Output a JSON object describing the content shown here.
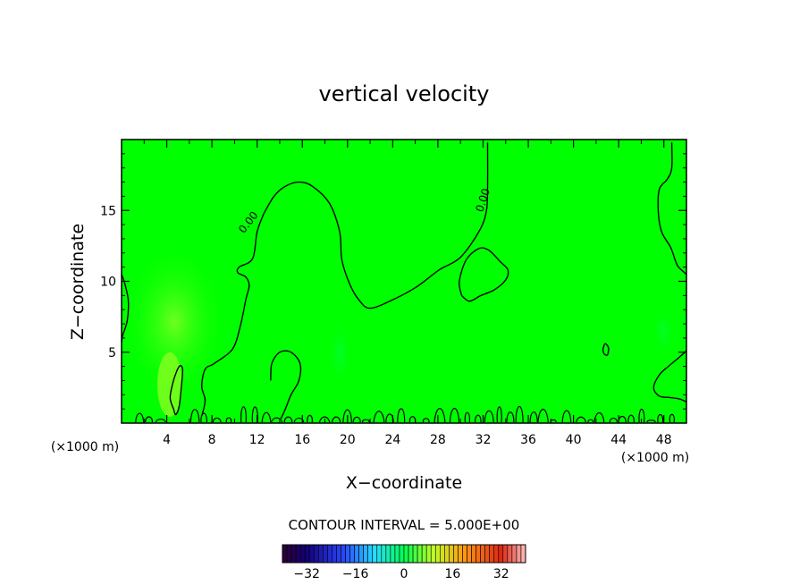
{
  "chart_data": {
    "type": "heatmap",
    "title": "vertical velocity",
    "xlabel": "X−coordinate",
    "ylabel": "Z−coordinate",
    "x_unit": "(×1000 m)",
    "y_unit": "(×1000 m)",
    "xlim": [
      0,
      50
    ],
    "ylim": [
      0,
      20
    ],
    "x_ticks": [
      4,
      8,
      12,
      16,
      20,
      24,
      28,
      32,
      36,
      40,
      44,
      48
    ],
    "y_ticks": [
      5,
      10,
      15
    ],
    "contour_interval_text": "CONTOUR INTERVAL = 5.000E+00",
    "contour_label": "0.00",
    "contour_levels": [
      0
    ],
    "background_color": "#00ff00",
    "colorbar": {
      "range": [
        -40,
        40
      ],
      "ticks": [
        -32,
        -16,
        0,
        16,
        32
      ],
      "tick_labels": [
        "−32",
        "−16",
        "0",
        "16",
        "32"
      ]
    },
    "zero_contours": [
      [
        [
          0,
          10.5
        ],
        [
          0.3,
          9.8
        ],
        [
          0.6,
          8.6
        ],
        [
          0.5,
          7.2
        ],
        [
          0.1,
          6.2
        ],
        [
          0,
          5.7
        ]
      ],
      [
        [
          12.6,
          14.8
        ],
        [
          12.0,
          13.5
        ],
        [
          11.6,
          11.6
        ],
        [
          10.4,
          11.0
        ],
        [
          10.3,
          10.6
        ],
        [
          11.0,
          10.3
        ],
        [
          11.3,
          9.7
        ],
        [
          11.0,
          8.7
        ],
        [
          10.5,
          6.8
        ],
        [
          9.8,
          5.2
        ],
        [
          8.2,
          4.2
        ],
        [
          7.4,
          3.8
        ],
        [
          7.1,
          2.6
        ],
        [
          7.4,
          1.6
        ],
        [
          7.1,
          0.5
        ]
      ],
      [
        [
          12.6,
          14.8
        ],
        [
          13.5,
          16.0
        ],
        [
          14.5,
          16.7
        ],
        [
          15.7,
          17.0
        ],
        [
          16.9,
          16.7
        ],
        [
          18.4,
          15.5
        ],
        [
          19.3,
          13.5
        ],
        [
          19.5,
          11.5
        ],
        [
          20.2,
          9.8
        ],
        [
          21.0,
          8.7
        ],
        [
          22.0,
          8.1
        ],
        [
          24.0,
          8.7
        ],
        [
          26.1,
          9.6
        ],
        [
          28.1,
          10.8
        ],
        [
          30.0,
          11.7
        ],
        [
          31.7,
          13.6
        ],
        [
          32.3,
          15.0
        ],
        [
          32.4,
          16.7
        ],
        [
          32.4,
          19.8
        ]
      ],
      [
        [
          30.1,
          9.0
        ],
        [
          29.9,
          10.0
        ],
        [
          30.5,
          11.5
        ],
        [
          31.6,
          12.3
        ],
        [
          32.5,
          12.2
        ],
        [
          33.5,
          11.4
        ],
        [
          34.2,
          10.8
        ],
        [
          34.0,
          10.1
        ],
        [
          33.0,
          9.4
        ],
        [
          31.8,
          9.0
        ],
        [
          30.8,
          8.6
        ],
        [
          30.1,
          9.0
        ]
      ],
      [
        [
          13.2,
          3.0
        ],
        [
          13.3,
          4.2
        ],
        [
          14.0,
          5.0
        ],
        [
          15.0,
          5.0
        ],
        [
          15.8,
          4.2
        ],
        [
          15.7,
          3.0
        ],
        [
          15.0,
          2.0
        ],
        [
          14.5,
          1.0
        ],
        [
          14.1,
          0.3
        ]
      ],
      [
        [
          4.6,
          1.0
        ],
        [
          4.3,
          1.8
        ],
        [
          4.6,
          3.0
        ],
        [
          5.1,
          4.0
        ],
        [
          5.4,
          3.8
        ],
        [
          5.3,
          2.6
        ],
        [
          5.1,
          1.2
        ],
        [
          4.8,
          0.6
        ],
        [
          4.6,
          1.0
        ]
      ],
      [
        [
          42.6,
          5.2
        ],
        [
          42.8,
          5.6
        ],
        [
          43.1,
          5.3
        ],
        [
          43.0,
          4.8
        ],
        [
          42.7,
          4.9
        ],
        [
          42.6,
          5.2
        ]
      ],
      [
        [
          48.7,
          19.8
        ],
        [
          48.7,
          18.0
        ],
        [
          48.3,
          17.2
        ],
        [
          47.6,
          16.5
        ],
        [
          47.5,
          15.0
        ],
        [
          47.8,
          13.5
        ],
        [
          48.6,
          12.4
        ],
        [
          49.0,
          11.5
        ],
        [
          49.3,
          11.0
        ],
        [
          50,
          10.5
        ]
      ],
      [
        [
          50,
          5.1
        ],
        [
          49.3,
          4.6
        ],
        [
          48.4,
          4.0
        ],
        [
          47.6,
          3.4
        ],
        [
          47.1,
          2.5
        ],
        [
          47.6,
          1.9
        ],
        [
          48.6,
          1.8
        ],
        [
          49.4,
          1.7
        ],
        [
          50,
          1.5
        ]
      ]
    ]
  }
}
